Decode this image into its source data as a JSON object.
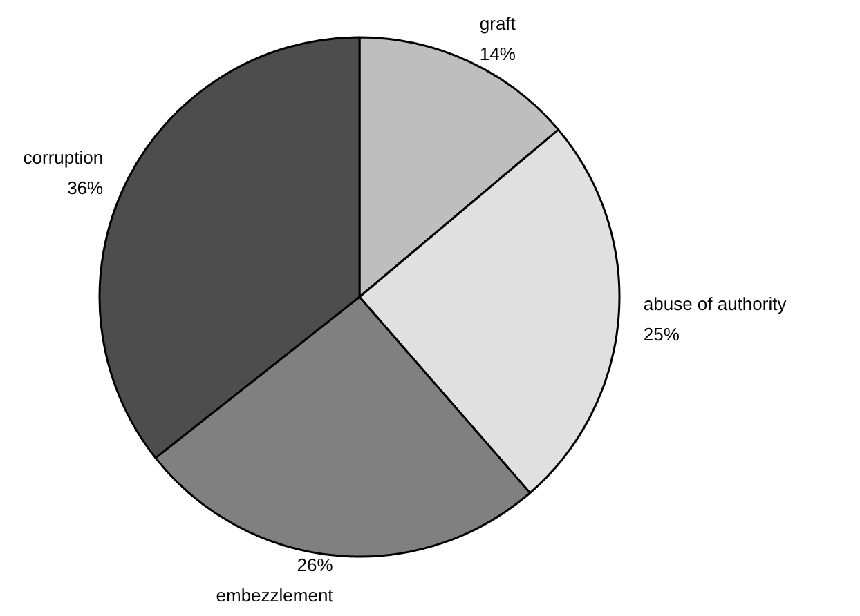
{
  "chart_data": {
    "type": "pie",
    "categories": [
      "graft",
      "abuse of authority",
      "embezzlement",
      "corruption"
    ],
    "values": [
      14,
      25,
      26,
      36
    ],
    "value_labels": [
      "14%",
      "25%",
      "26%",
      "36%"
    ],
    "colors": [
      "#bebebe",
      "#e0e0e0",
      "#808080",
      "#4d4d4d"
    ],
    "legend": false
  }
}
